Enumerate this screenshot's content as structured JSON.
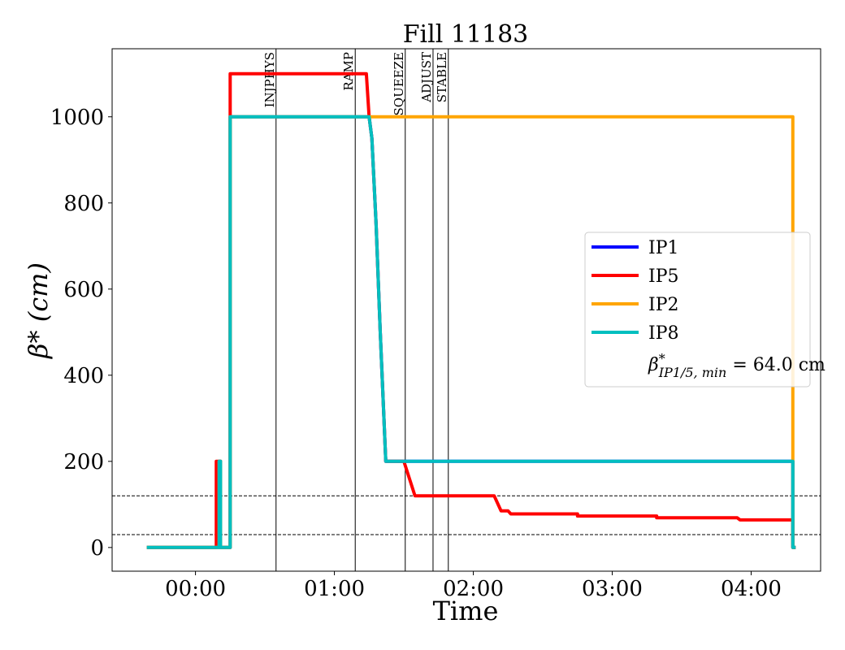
{
  "chart_data": {
    "type": "line",
    "title": "Fill 11183",
    "xlabel": "Time",
    "ylabel": "β* (cm)",
    "x_unit": "hours",
    "xlim": [
      -0.6,
      4.5
    ],
    "ylim": [
      -55,
      1158
    ],
    "x_ticks": [
      {
        "value": 0,
        "label": "00:00"
      },
      {
        "value": 1,
        "label": "01:00"
      },
      {
        "value": 2,
        "label": "02:00"
      },
      {
        "value": 3,
        "label": "03:00"
      },
      {
        "value": 4,
        "label": "04:00"
      }
    ],
    "y_ticks": [
      {
        "value": 0,
        "label": "0"
      },
      {
        "value": 200,
        "label": "200"
      },
      {
        "value": 400,
        "label": "400"
      },
      {
        "value": 600,
        "label": "600"
      },
      {
        "value": 800,
        "label": "800"
      },
      {
        "value": 1000,
        "label": "1000"
      }
    ],
    "grid": false,
    "legend_position": "center-right",
    "series": [
      {
        "name": "IP1",
        "color": "#0000ff",
        "points": [
          [
            -0.35,
            0
          ],
          [
            0.17,
            0
          ],
          [
            0.17,
            200
          ],
          [
            0.18,
            200
          ],
          [
            0.18,
            0
          ],
          [
            0.25,
            0
          ],
          [
            0.25,
            1000
          ],
          [
            1.25,
            1000
          ],
          [
            1.27,
            950
          ],
          [
            1.3,
            750
          ],
          [
            1.33,
            500
          ],
          [
            1.37,
            200
          ],
          [
            1.5,
            200
          ],
          [
            2.0,
            200
          ],
          [
            3.0,
            200
          ],
          [
            4.3,
            200
          ],
          [
            4.3,
            0
          ],
          [
            4.32,
            0
          ]
        ]
      },
      {
        "name": "IP5",
        "color": "#ff0000",
        "points": [
          [
            -0.35,
            0
          ],
          [
            0.15,
            0
          ],
          [
            0.15,
            200
          ],
          [
            0.18,
            200
          ],
          [
            0.18,
            0
          ],
          [
            0.25,
            0
          ],
          [
            0.25,
            1100
          ],
          [
            1.23,
            1100
          ],
          [
            1.25,
            1000
          ],
          [
            1.27,
            950
          ],
          [
            1.3,
            750
          ],
          [
            1.33,
            500
          ],
          [
            1.37,
            200
          ],
          [
            1.5,
            200
          ],
          [
            1.55,
            150
          ],
          [
            1.58,
            120
          ],
          [
            2.15,
            120
          ],
          [
            2.2,
            85
          ],
          [
            2.25,
            85
          ],
          [
            2.27,
            78
          ],
          [
            2.75,
            78
          ],
          [
            2.75,
            73
          ],
          [
            3.32,
            73
          ],
          [
            3.32,
            69
          ],
          [
            3.9,
            69
          ],
          [
            3.92,
            64
          ],
          [
            4.3,
            64
          ],
          [
            4.3,
            0
          ],
          [
            4.32,
            0
          ]
        ]
      },
      {
        "name": "IP2",
        "color": "#ffa500",
        "points": [
          [
            -0.35,
            0
          ],
          [
            0.17,
            0
          ],
          [
            0.17,
            200
          ],
          [
            0.18,
            200
          ],
          [
            0.18,
            0
          ],
          [
            0.25,
            0
          ],
          [
            0.25,
            1000
          ],
          [
            4.3,
            1000
          ],
          [
            4.3,
            0
          ],
          [
            4.32,
            0
          ]
        ]
      },
      {
        "name": "IP8",
        "color": "#00bfbf",
        "points": [
          [
            -0.35,
            0
          ],
          [
            0.17,
            0
          ],
          [
            0.17,
            200
          ],
          [
            0.18,
            200
          ],
          [
            0.18,
            0
          ],
          [
            0.25,
            0
          ],
          [
            0.25,
            1000
          ],
          [
            1.25,
            1000
          ],
          [
            1.27,
            950
          ],
          [
            1.3,
            750
          ],
          [
            1.33,
            500
          ],
          [
            1.37,
            200
          ],
          [
            1.5,
            200
          ],
          [
            2.0,
            200
          ],
          [
            3.0,
            200
          ],
          [
            4.3,
            200
          ],
          [
            4.3,
            0
          ],
          [
            4.32,
            0
          ]
        ]
      }
    ],
    "h_lines": [
      {
        "y": 120,
        "style": "dashed"
      },
      {
        "y": 30,
        "style": "dashed"
      }
    ],
    "phase_markers": [
      {
        "label": "INJPHYS",
        "x": 0.58
      },
      {
        "label": "RAMP",
        "x": 1.15
      },
      {
        "label": "SQUEEZE",
        "x": 1.51
      },
      {
        "label": "ADJUST",
        "x": 1.71
      },
      {
        "label": "STABLE",
        "x": 1.82
      }
    ],
    "legend_note": {
      "symbol": "β",
      "sup": "*",
      "sub": "IP1/5, min",
      "value_text": " = 64.0 cm"
    }
  }
}
